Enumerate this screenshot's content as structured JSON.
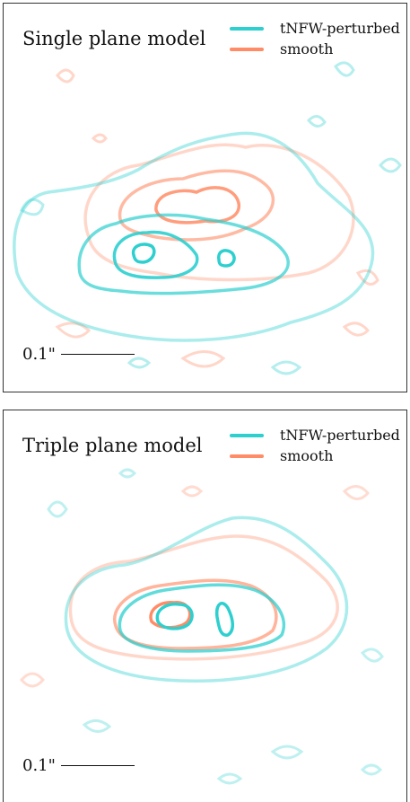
{
  "colors": {
    "perturbed": "#2ecfcf",
    "smooth": "#ff8c66"
  },
  "panels": [
    {
      "title": "Single plane model",
      "legend": [
        "tNFW-perturbed",
        "smooth"
      ],
      "scale_label": "0.1\""
    },
    {
      "title": "Triple plane model",
      "legend": [
        "tNFW-perturbed",
        "smooth"
      ],
      "scale_label": "0.1\""
    }
  ]
}
